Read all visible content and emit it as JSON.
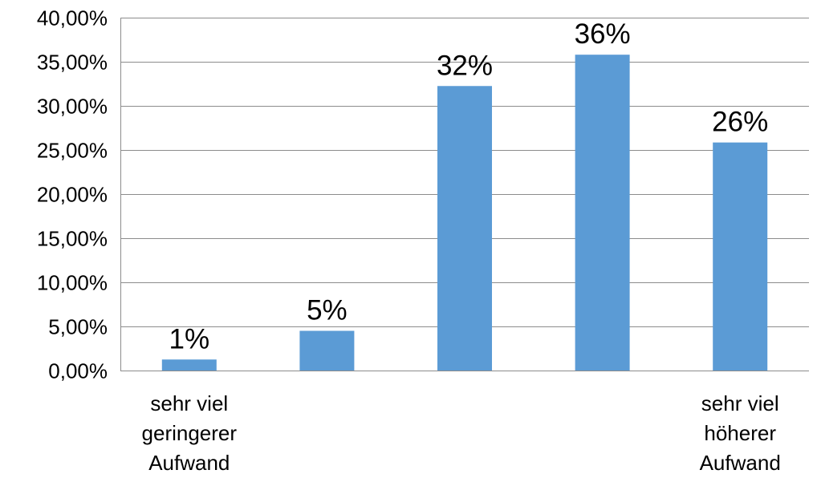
{
  "chart_data": {
    "type": "bar",
    "categories": [
      [
        "sehr viel",
        "geringerer",
        "Aufwand"
      ],
      [],
      [],
      [],
      [
        "sehr viel",
        "höherer",
        "Aufwand"
      ]
    ],
    "values": [
      0.0125,
      0.045,
      0.3225,
      0.358,
      0.2585
    ],
    "data_labels": [
      "1%",
      "5%",
      "32%",
      "36%",
      "26%"
    ],
    "ylim": [
      0,
      0.4
    ],
    "y_ticks": [
      {
        "value": 0,
        "label": "0,00%"
      },
      {
        "value": 0.05,
        "label": "5,00%"
      },
      {
        "value": 0.1,
        "label": "10,00%"
      },
      {
        "value": 0.15,
        "label": "15,00%"
      },
      {
        "value": 0.2,
        "label": "20,00%"
      },
      {
        "value": 0.25,
        "label": "25,00%"
      },
      {
        "value": 0.3,
        "label": "30,00%"
      },
      {
        "value": 0.35,
        "label": "35,00%"
      },
      {
        "value": 0.4,
        "label": "40,00%"
      }
    ],
    "grid": true,
    "legend": "none",
    "colors": {
      "bar": "#5b9bd5",
      "grid": "#8c8c8c",
      "axis": "#8c8c8c",
      "text": "#000000"
    }
  }
}
